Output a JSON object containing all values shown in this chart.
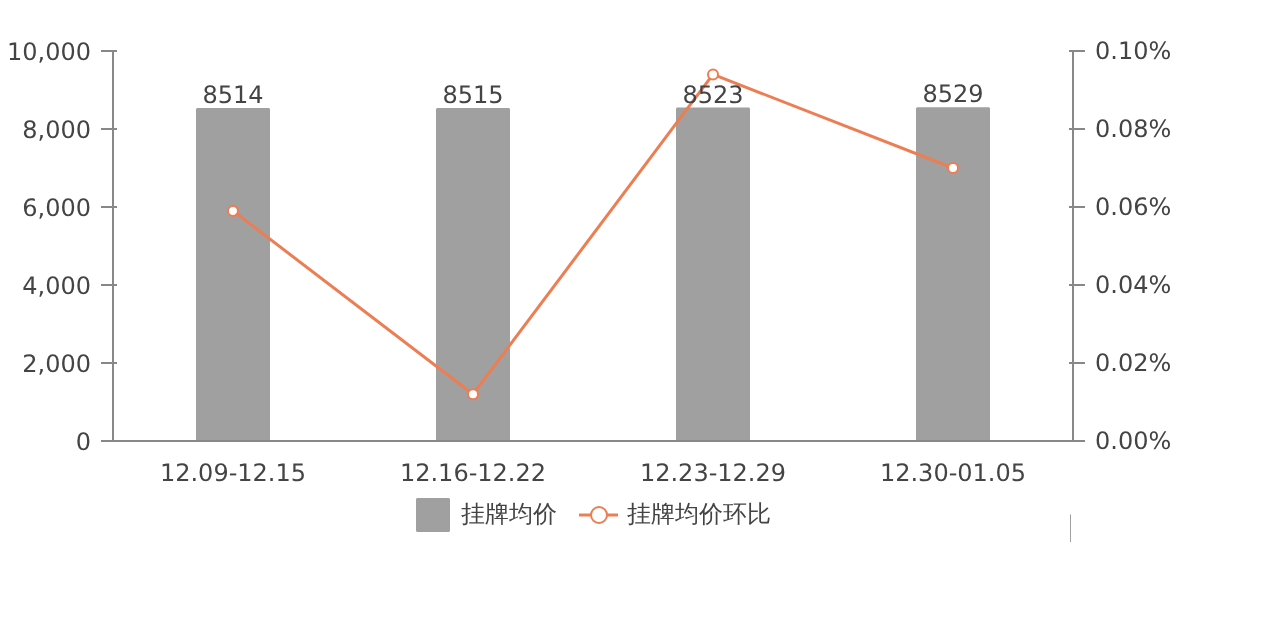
{
  "chart_data": {
    "type": "bar",
    "categories": [
      "12.09-12.15",
      "12.16-12.22",
      "12.23-12.29",
      "12.30-01.05"
    ],
    "series": [
      {
        "name": "挂牌均价",
        "color": "#a0a0a0",
        "values": [
          8514,
          8515,
          8523,
          8529
        ],
        "value_labels": [
          "8514",
          "8515",
          "8523",
          "8529"
        ]
      },
      {
        "name": "挂牌均价环比",
        "type": "line",
        "axis": "y2",
        "color": "#ed7d53",
        "marker": "circle",
        "values": [
          0.059,
          0.012,
          0.094,
          0.07
        ]
      }
    ],
    "ylim": [
      0,
      10000
    ],
    "yticks": [
      {
        "value": 0,
        "label": "0"
      },
      {
        "value": 2000,
        "label": "2,000"
      },
      {
        "value": 4000,
        "label": "4,000"
      },
      {
        "value": 6000,
        "label": "6,000"
      },
      {
        "value": 8000,
        "label": "8,000"
      },
      {
        "value": 10000,
        "label": "10,000"
      }
    ],
    "y2lim": [
      0,
      0.1
    ],
    "y2ticks": [
      {
        "value": 0,
        "label": "0.00%"
      },
      {
        "value": 0.02,
        "label": "0.02%"
      },
      {
        "value": 0.04,
        "label": "0.04%"
      },
      {
        "value": 0.06,
        "label": "0.06%"
      },
      {
        "value": 0.08,
        "label": "0.08%"
      },
      {
        "value": 0.1,
        "label": "0.10%"
      }
    ],
    "grid": false,
    "legend": "bottom"
  }
}
